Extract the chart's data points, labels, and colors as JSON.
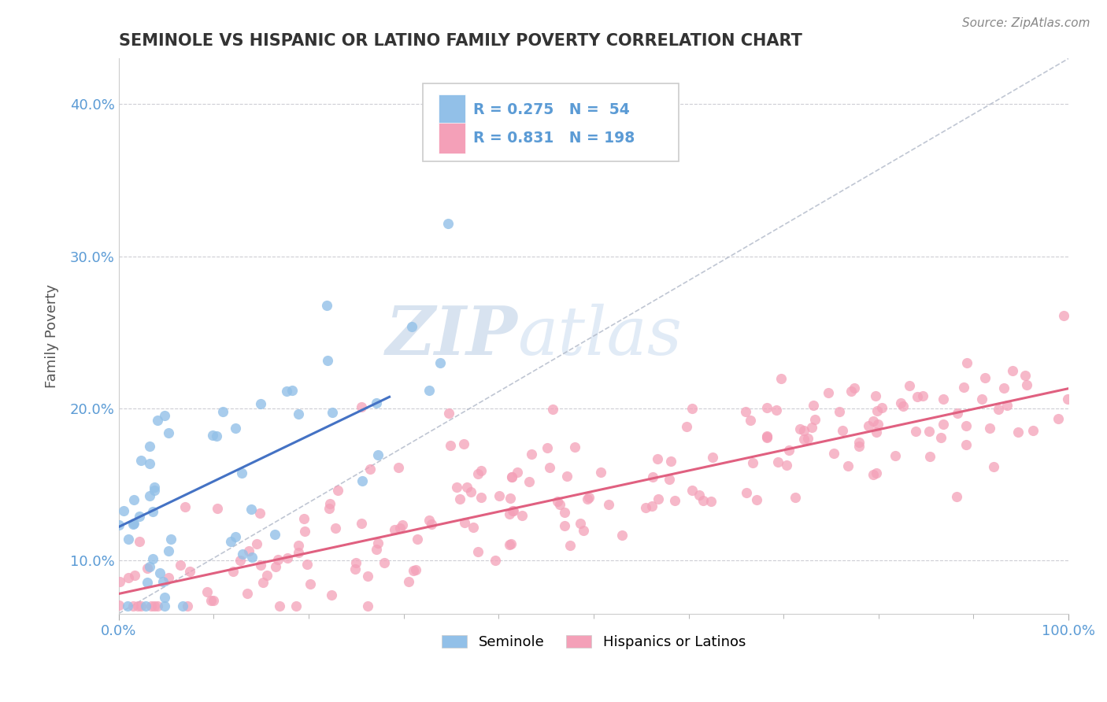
{
  "title": "SEMINOLE VS HISPANIC OR LATINO FAMILY POVERTY CORRELATION CHART",
  "source": "Source: ZipAtlas.com",
  "xlabel": "",
  "ylabel": "Family Poverty",
  "xlim": [
    0.0,
    1.0
  ],
  "ylim": [
    0.065,
    0.43
  ],
  "yticks": [
    0.1,
    0.2,
    0.3,
    0.4
  ],
  "ytick_labels": [
    "10.0%",
    "20.0%",
    "30.0%",
    "40.0%"
  ],
  "xticks": [
    0.0,
    1.0
  ],
  "xtick_labels": [
    "0.0%",
    "100.0%"
  ],
  "seminole_color": "#92c0e8",
  "hispanic_color": "#f4a0b8",
  "seminole_R": 0.275,
  "seminole_N": 54,
  "hispanic_R": 0.831,
  "hispanic_N": 198,
  "watermark_zip": "ZIP",
  "watermark_atlas": "atlas",
  "background_color": "#ffffff",
  "grid_color": "#c8c8d0",
  "tick_label_color": "#5b9bd5",
  "title_color": "#333333",
  "seminole_trend_color": "#4472c4",
  "hispanic_trend_color": "#e06080",
  "ref_line_color": "#b0b8c8"
}
